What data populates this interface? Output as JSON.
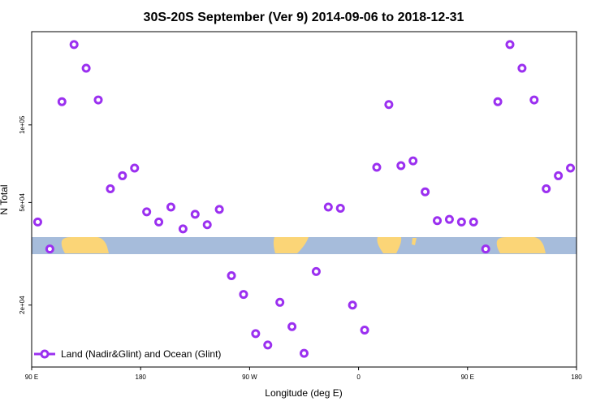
{
  "chart_data": {
    "type": "scatter",
    "title": "30S-20S September (Ver 9)   2014-09-06 to 2018-12-31",
    "xlabel": "Longitude (deg E)",
    "ylabel": "N Total",
    "xlim": [
      90,
      540
    ],
    "x_ticks": [
      {
        "value": 90,
        "label": "90 E"
      },
      {
        "value": 180,
        "label": "180"
      },
      {
        "value": 270,
        "label": "90 W"
      },
      {
        "value": 360,
        "label": "0"
      },
      {
        "value": 450,
        "label": "90 E"
      },
      {
        "value": 540,
        "label": "180"
      }
    ],
    "y_scale": "log",
    "ylim": [
      11500,
      230000
    ],
    "y_ticks": [
      {
        "value": 20000,
        "label": "2e+04"
      },
      {
        "value": 50000,
        "label": "5e+04"
      },
      {
        "value": 100000,
        "label": "1e+05"
      }
    ],
    "grid": false,
    "legend": {
      "position": "bottom-left",
      "entries": [
        "Land (Nadir&Glint) and Ocean (Glint)"
      ]
    },
    "series": [
      {
        "name": "Land (Nadir&Glint) and Ocean (Glint)",
        "color": "#9b30f0",
        "x": [
          95,
          105,
          115,
          125,
          135,
          145,
          155,
          165,
          175,
          185,
          195,
          205,
          215,
          225,
          235,
          245,
          255,
          265,
          275,
          285,
          295,
          305,
          315,
          325,
          335,
          345,
          355,
          365,
          375,
          385,
          395,
          405,
          415,
          425,
          435,
          445,
          455,
          465,
          475,
          485,
          495,
          505,
          515,
          525,
          535
        ],
        "y": [
          42000,
          33000,
          123000,
          205000,
          166000,
          125000,
          56500,
          63500,
          68000,
          46000,
          42000,
          48000,
          39500,
          45000,
          41000,
          47000,
          26000,
          22000,
          15500,
          14000,
          20500,
          16500,
          13000,
          27000,
          48000,
          47500,
          20000,
          16000,
          68500,
          120000,
          69500,
          72500,
          55000,
          42500,
          43000,
          42000,
          42000,
          33000,
          123000,
          205000,
          166000,
          125000,
          56500,
          63500,
          68000
        ]
      }
    ]
  }
}
